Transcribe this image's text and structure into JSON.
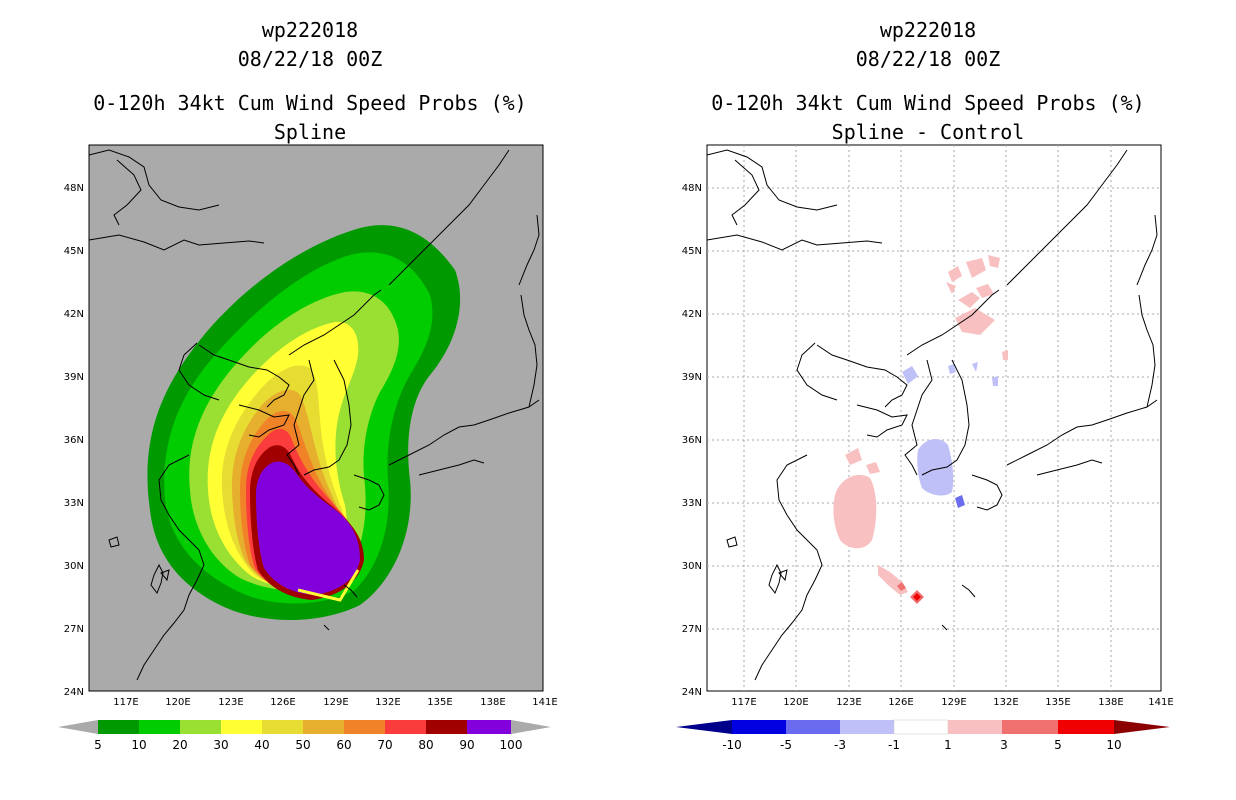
{
  "left": {
    "title_line1": "wp222018",
    "title_line2": "08/22/18 00Z",
    "title_line3": "0-120h 34kt Cum Wind Speed Probs (%)",
    "title_line4": "Spline",
    "lat_labels": [
      "48N",
      "45N",
      "42N",
      "39N",
      "36N",
      "33N",
      "30N",
      "27N",
      "24N"
    ],
    "lon_labels": [
      "117E",
      "120E",
      "123E",
      "126E",
      "129E",
      "132E",
      "135E",
      "138E",
      "141E"
    ],
    "colorbar": {
      "labels": [
        "5",
        "10",
        "20",
        "30",
        "40",
        "50",
        "60",
        "70",
        "80",
        "90",
        "100"
      ],
      "colors": [
        "#009900",
        "#00cc00",
        "#99e033",
        "#ffff33",
        "#e6dc32",
        "#e6af2d",
        "#f08228",
        "#fa3c3c",
        "#a00000",
        "#8200dc"
      ],
      "left_arrow_color": "#aaaaaa",
      "right_arrow_color": "#aaaaaa"
    }
  },
  "right": {
    "title_line1": "wp222018",
    "title_line2": "08/22/18 00Z",
    "title_line3": "0-120h 34kt Cum Wind Speed Probs (%)",
    "title_line4": "Spline - Control",
    "lat_labels": [
      "48N",
      "45N",
      "42N",
      "39N",
      "36N",
      "33N",
      "30N",
      "27N",
      "24N"
    ],
    "lon_labels": [
      "117E",
      "120E",
      "123E",
      "126E",
      "129E",
      "132E",
      "135E",
      "138E",
      "141E"
    ],
    "colorbar": {
      "labels": [
        "-10",
        "-5",
        "-3",
        "-1",
        "1",
        "3",
        "5",
        "10"
      ],
      "colors": [
        "#0000e0",
        "#6b6bf0",
        "#c0c0f8",
        "#ffffff",
        "#f8c0c0",
        "#f07070",
        "#f00000"
      ],
      "left_arrow_color": "#00008b",
      "right_arrow_color": "#8b0000"
    }
  }
}
